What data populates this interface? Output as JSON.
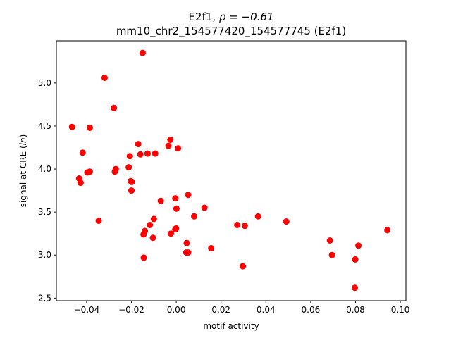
{
  "chart_data": {
    "type": "scatter",
    "title_line1_prefix": "E2f1, ",
    "title_line1_rho": "ρ = −0.61",
    "title_line2": "mm10_chr2_154577420_154577745 (E2f1)",
    "xlabel": "motif activity",
    "ylabel_prefix": "signal at CRE (",
    "ylabel_italic": "ln",
    "ylabel_suffix": ")",
    "xlim": [
      -0.0535,
      0.1025
    ],
    "ylim": [
      2.47,
      5.49
    ],
    "x_ticks": [
      {
        "value": -0.04,
        "label": "−0.04"
      },
      {
        "value": -0.02,
        "label": "−0.02"
      },
      {
        "value": 0.0,
        "label": "0.00"
      },
      {
        "value": 0.02,
        "label": "0.02"
      },
      {
        "value": 0.04,
        "label": "0.04"
      },
      {
        "value": 0.06,
        "label": "0.06"
      },
      {
        "value": 0.08,
        "label": "0.08"
      },
      {
        "value": 0.1,
        "label": "0.10"
      }
    ],
    "y_ticks": [
      {
        "value": 2.5,
        "label": "2.5"
      },
      {
        "value": 3.0,
        "label": "3.0"
      },
      {
        "value": 3.5,
        "label": "3.5"
      },
      {
        "value": 4.0,
        "label": "4.0"
      },
      {
        "value": 4.5,
        "label": "4.5"
      },
      {
        "value": 5.0,
        "label": "5.0"
      }
    ],
    "marker_color": "#ff0000",
    "grid": false,
    "points": [
      {
        "x": -0.015,
        "y": 5.35
      },
      {
        "x": -0.032,
        "y": 5.06
      },
      {
        "x": -0.0278,
        "y": 4.71
      },
      {
        "x": -0.0465,
        "y": 4.49
      },
      {
        "x": -0.0386,
        "y": 4.48
      },
      {
        "x": -0.0026,
        "y": 4.34
      },
      {
        "x": -0.017,
        "y": 4.29
      },
      {
        "x": -0.0035,
        "y": 4.27
      },
      {
        "x": 0.0008,
        "y": 4.24
      },
      {
        "x": -0.0418,
        "y": 4.19
      },
      {
        "x": -0.0128,
        "y": 4.18
      },
      {
        "x": -0.0094,
        "y": 4.18
      },
      {
        "x": -0.016,
        "y": 4.17
      },
      {
        "x": -0.0207,
        "y": 4.15
      },
      {
        "x": -0.0212,
        "y": 4.02
      },
      {
        "x": -0.027,
        "y": 4.0
      },
      {
        "x": -0.0274,
        "y": 3.97
      },
      {
        "x": -0.0386,
        "y": 3.97
      },
      {
        "x": -0.0397,
        "y": 3.96
      },
      {
        "x": -0.0433,
        "y": 3.89
      },
      {
        "x": -0.0203,
        "y": 3.86
      },
      {
        "x": -0.0198,
        "y": 3.85
      },
      {
        "x": -0.0427,
        "y": 3.84
      },
      {
        "x": -0.02,
        "y": 3.75
      },
      {
        "x": 0.0053,
        "y": 3.7
      },
      {
        "x": -0.0004,
        "y": 3.66
      },
      {
        "x": -0.0069,
        "y": 3.63
      },
      {
        "x": 0.0126,
        "y": 3.55
      },
      {
        "x": 0.0001,
        "y": 3.54
      },
      {
        "x": 0.0365,
        "y": 3.45
      },
      {
        "x": 0.008,
        "y": 3.45
      },
      {
        "x": -0.01,
        "y": 3.42
      },
      {
        "x": -0.0346,
        "y": 3.4
      },
      {
        "x": 0.0491,
        "y": 3.39
      },
      {
        "x": 0.0272,
        "y": 3.35
      },
      {
        "x": -0.0118,
        "y": 3.35
      },
      {
        "x": 0.0306,
        "y": 3.34
      },
      {
        "x": -0.0001,
        "y": 3.31
      },
      {
        "x": -0.0004,
        "y": 3.3
      },
      {
        "x": 0.0942,
        "y": 3.29
      },
      {
        "x": -0.014,
        "y": 3.28
      },
      {
        "x": -0.0024,
        "y": 3.25
      },
      {
        "x": -0.0146,
        "y": 3.24
      },
      {
        "x": -0.0104,
        "y": 3.2
      },
      {
        "x": 0.0686,
        "y": 3.17
      },
      {
        "x": 0.0047,
        "y": 3.14
      },
      {
        "x": 0.0813,
        "y": 3.11
      },
      {
        "x": 0.0156,
        "y": 3.08
      },
      {
        "x": 0.0045,
        "y": 3.03
      },
      {
        "x": 0.0053,
        "y": 3.03
      },
      {
        "x": 0.0695,
        "y": 3.0
      },
      {
        "x": -0.0145,
        "y": 2.97
      },
      {
        "x": 0.0799,
        "y": 2.95
      },
      {
        "x": 0.0297,
        "y": 2.87
      },
      {
        "x": 0.0797,
        "y": 2.62
      }
    ]
  }
}
